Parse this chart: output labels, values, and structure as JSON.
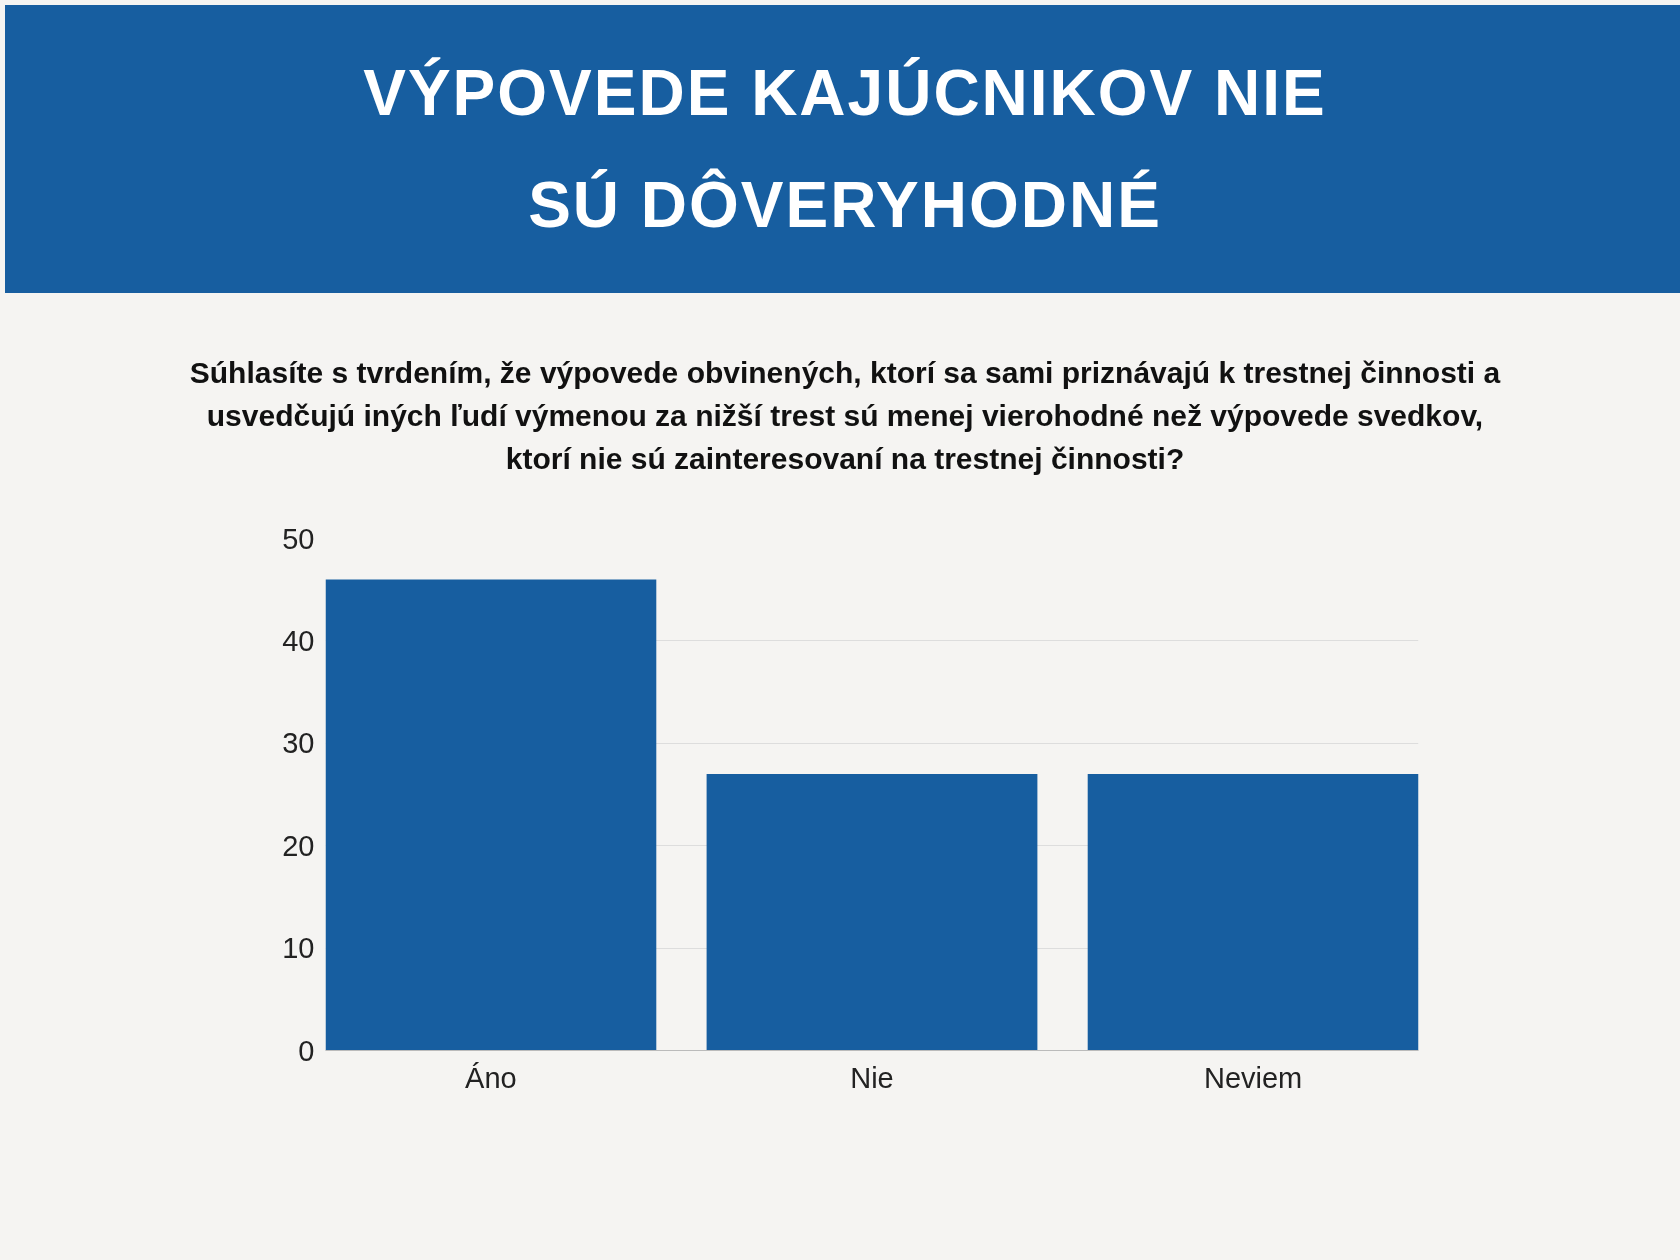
{
  "chart_data": {
    "type": "bar",
    "title": "VÝPOVEDE KAJÚCNIKOV NIE SÚ DÔVERYHODNÉ",
    "subtitle": "Súhlasíte s tvrdením, že výpovede obvinených, ktorí sa sami priznávajú k trestnej činnosti a usvedčujú iných ľudí výmenou za nižší trest sú menej vierohodné než výpovede svedkov, ktorí nie sú zainteresovaní na trestnej činnosti?",
    "categories": [
      "Áno",
      "Nie",
      "Neviem"
    ],
    "values": [
      46,
      27,
      27
    ],
    "color": "#175ea0",
    "ylim": [
      0,
      50
    ],
    "yticks": [
      0,
      10,
      20,
      30,
      40,
      50
    ],
    "grid": "y"
  }
}
